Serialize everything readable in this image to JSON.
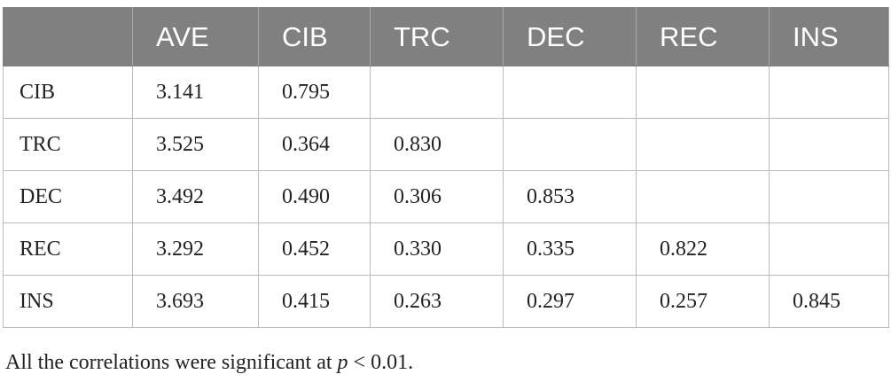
{
  "table": {
    "headers": [
      "",
      "AVE",
      "CIB",
      "TRC",
      "DEC",
      "REC",
      "INS"
    ],
    "rows": [
      {
        "label": "CIB",
        "cells": [
          "3.141",
          "0.795",
          "",
          "",
          "",
          ""
        ]
      },
      {
        "label": "TRC",
        "cells": [
          "3.525",
          "0.364",
          "0.830",
          "",
          "",
          ""
        ]
      },
      {
        "label": "DEC",
        "cells": [
          "3.492",
          "0.490",
          "0.306",
          "0.853",
          "",
          ""
        ]
      },
      {
        "label": "REC",
        "cells": [
          "3.292",
          "0.452",
          "0.330",
          "0.335",
          "0.822",
          ""
        ]
      },
      {
        "label": "INS",
        "cells": [
          "3.693",
          "0.415",
          "0.263",
          "0.297",
          "0.257",
          "0.845"
        ]
      }
    ]
  },
  "footnote": {
    "prefix": "All the correlations were significant at ",
    "variable": "p",
    "suffix": " < 0.01."
  },
  "colors": {
    "header_background": "#808080",
    "header_text": "#ffffff",
    "grid_line": "#bcbcbc"
  }
}
